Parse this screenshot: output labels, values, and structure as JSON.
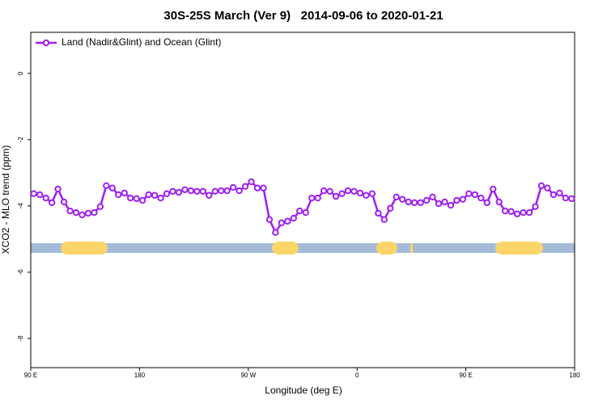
{
  "chart_data": {
    "type": "line",
    "title": "30S-25S March (Ver 9)   2014-09-06 to 2020-01-21",
    "x_label": "Longitude (deg E)",
    "y_label": "XCO2 - MLO trend (ppm)",
    "legend": "top-left",
    "xlim": [
      90,
      540
    ],
    "ylim": [
      -8.88,
      1.24
    ],
    "xticks": [
      {
        "value": 90,
        "label": "90 E"
      },
      180,
      {
        "value": 270,
        "label": "90 W"
      },
      {
        "value": 360,
        "label": "0"
      },
      {
        "value": 450,
        "label": "90 E"
      },
      {
        "value": 540,
        "label": "180"
      }
    ],
    "yticks": [
      0,
      -2,
      -4,
      -6,
      -8
    ],
    "x": [
      92.5,
      97.5,
      102.5,
      107.5,
      112.5,
      117.5,
      122.5,
      127.5,
      132.5,
      137.5,
      142.5,
      147.5,
      152.5,
      157.5,
      162.5,
      167.5,
      172.5,
      177.5,
      182.5,
      187.5,
      192.5,
      197.5,
      202.5,
      207.5,
      212.5,
      217.5,
      222.5,
      227.5,
      232.5,
      237.5,
      242.5,
      247.5,
      252.5,
      257.5,
      262.5,
      267.5,
      272.5,
      277.5,
      282.5,
      287.5,
      292.5,
      297.5,
      302.5,
      307.5,
      312.5,
      317.5,
      322.5,
      327.5,
      332.5,
      337.5,
      342.5,
      347.5,
      352.5,
      357.5,
      362.5,
      367.5,
      372.5,
      377.5,
      382.5,
      387.5,
      392.5,
      397.5,
      402.5,
      407.5,
      412.5,
      417.5,
      422.5,
      427.5,
      432.5,
      437.5,
      442.5,
      447.5,
      452.5,
      457.5,
      462.5,
      467.5,
      472.5,
      477.5,
      482.5,
      487.5,
      492.5,
      497.5,
      502.5,
      507.5,
      512.5,
      517.5,
      522.5,
      527.5,
      532.5,
      537.5
    ],
    "series": [
      {
        "name": "Land (Nadir&Glint) and Ocean (Glint)",
        "color": "#a020f0",
        "values": [
          -3.63,
          -3.66,
          -3.76,
          -3.9,
          -3.49,
          -3.88,
          -4.15,
          -4.2,
          -4.27,
          -4.22,
          -4.2,
          -4.02,
          -3.39,
          -3.46,
          -3.66,
          -3.61,
          -3.76,
          -3.78,
          -3.83,
          -3.66,
          -3.68,
          -3.76,
          -3.63,
          -3.56,
          -3.59,
          -3.51,
          -3.54,
          -3.56,
          -3.56,
          -3.68,
          -3.56,
          -3.54,
          -3.54,
          -3.44,
          -3.54,
          -3.41,
          -3.27,
          -3.46,
          -3.46,
          -4.41,
          -4.8,
          -4.51,
          -4.46,
          -4.37,
          -4.15,
          -4.2,
          -3.76,
          -3.76,
          -3.54,
          -3.56,
          -3.71,
          -3.63,
          -3.54,
          -3.56,
          -3.61,
          -3.68,
          -3.63,
          -4.22,
          -4.41,
          -4.07,
          -3.73,
          -3.8,
          -3.88,
          -3.9,
          -3.9,
          -3.83,
          -3.73,
          -3.93,
          -3.88,
          -3.98,
          -3.83,
          -3.8,
          -3.63,
          -3.66,
          -3.76,
          -3.9,
          -3.49,
          -3.88,
          -4.15,
          -4.17,
          -4.24,
          -4.2,
          -4.2,
          -4.02,
          -3.39,
          -3.46,
          -3.66,
          -3.61,
          -3.76,
          -3.78
        ]
      }
    ]
  }
}
